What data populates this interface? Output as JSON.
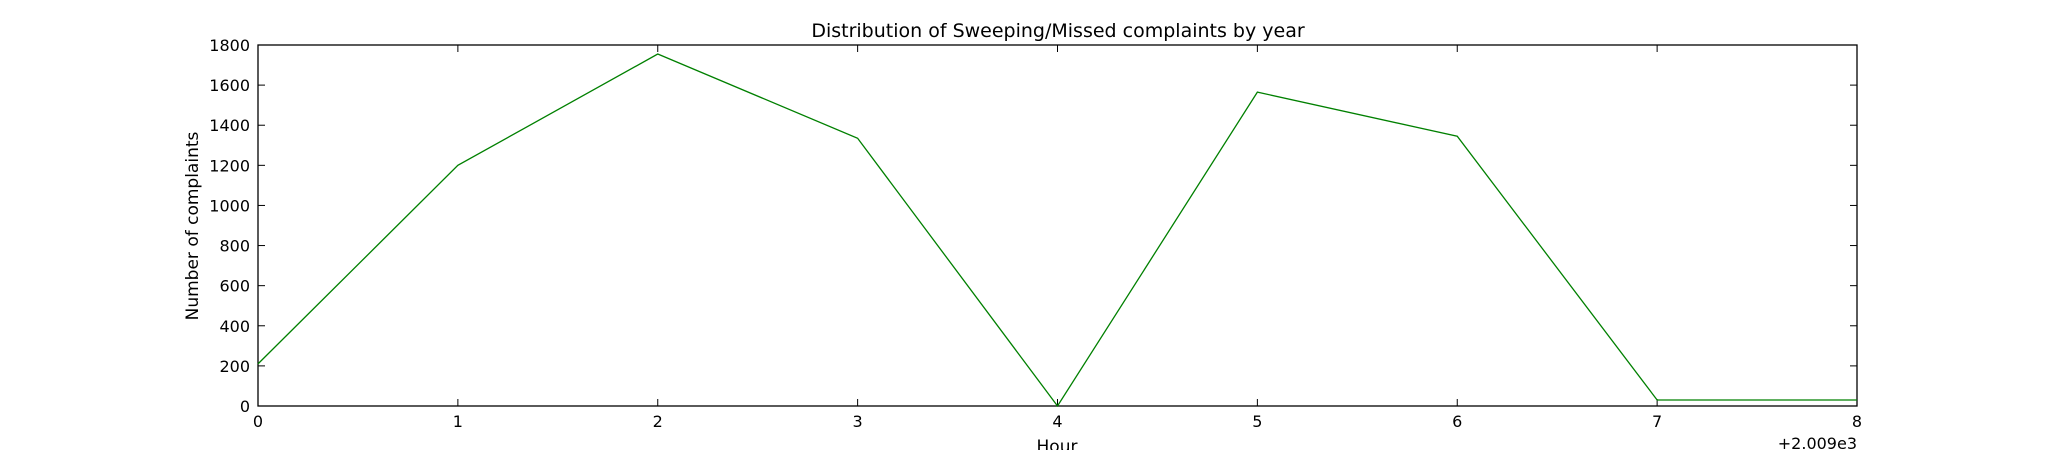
{
  "chart_data": {
    "type": "line",
    "title": "Distribution of  Sweeping/Missed complaints by year",
    "xlabel": "Hour",
    "ylabel": "Number of complaints",
    "offset_label": "+2.009e3",
    "xlim": [
      0,
      8
    ],
    "ylim": [
      0,
      1800
    ],
    "xticks": [
      0,
      1,
      2,
      3,
      4,
      5,
      6,
      7,
      8
    ],
    "yticks": [
      0,
      200,
      400,
      600,
      800,
      1000,
      1200,
      1400,
      1600,
      1800
    ],
    "grid": false,
    "legend": "none",
    "series": [
      {
        "color": "#008000",
        "x": [
          0,
          1,
          2,
          3,
          4,
          5,
          6,
          7,
          8
        ],
        "y": [
          210,
          1200,
          1755,
          1335,
          0,
          1565,
          1345,
          30,
          30
        ]
      }
    ]
  }
}
